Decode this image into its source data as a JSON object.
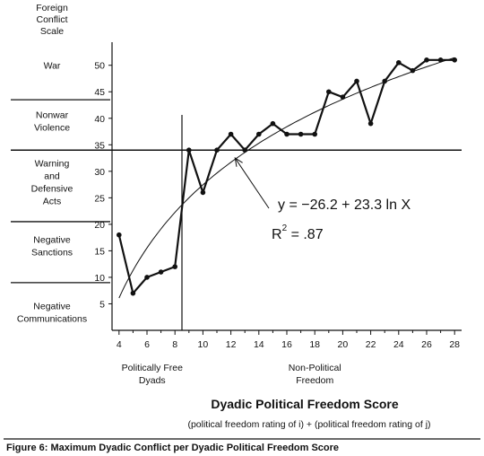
{
  "chart_data": {
    "type": "line",
    "title": "",
    "y_axis_title": [
      "Foreign",
      "Conflict",
      "Scale"
    ],
    "xlabel": "Dyadic Political Freedom Score",
    "xlabel_sub": "(political freedom rating of i) + (political freedom rating of j)",
    "xlim": [
      3.5,
      28.5
    ],
    "ylim": [
      0,
      53
    ],
    "x_ticks": [
      4,
      6,
      8,
      10,
      12,
      14,
      16,
      18,
      20,
      22,
      24,
      26,
      28
    ],
    "y_ticks": [
      5,
      10,
      15,
      20,
      25,
      30,
      35,
      40,
      45,
      50
    ],
    "series": [
      {
        "name": "",
        "style": "line-with-markers",
        "points": [
          {
            "x": 4,
            "y": 18
          },
          {
            "x": 5,
            "y": 7
          },
          {
            "x": 6,
            "y": 10
          },
          {
            "x": 7,
            "y": 11
          },
          {
            "x": 8,
            "y": 12
          },
          {
            "x": 9,
            "y": 34
          },
          {
            "x": 10,
            "y": 26
          },
          {
            "x": 11,
            "y": 34
          },
          {
            "x": 12,
            "y": 37
          },
          {
            "x": 13,
            "y": 34
          },
          {
            "x": 14,
            "y": 37
          },
          {
            "x": 15,
            "y": 39
          },
          {
            "x": 16,
            "y": 37
          },
          {
            "x": 17,
            "y": 37
          },
          {
            "x": 18,
            "y": 37
          },
          {
            "x": 19,
            "y": 45
          },
          {
            "x": 20,
            "y": 44
          },
          {
            "x": 21,
            "y": 47
          },
          {
            "x": 22,
            "y": 39
          },
          {
            "x": 23,
            "y": 47
          },
          {
            "x": 24,
            "y": 50.5
          },
          {
            "x": 25,
            "y": 49
          },
          {
            "x": 26,
            "y": 51
          },
          {
            "x": 27,
            "y": 51
          },
          {
            "x": 28,
            "y": 51
          }
        ]
      },
      {
        "name": "",
        "style": "fitted-curve",
        "equation": {
          "a": -26.2,
          "b": 23.3
        },
        "x_range": [
          4,
          28
        ]
      }
    ],
    "band_boundaries": [
      9,
      20.5,
      34,
      43.5
    ],
    "bands": [
      {
        "label": [
          "War"
        ],
        "y": 50
      },
      {
        "label": [
          "Nonwar",
          "Violence"
        ],
        "y": 39.5
      },
      {
        "label": [
          "Warning",
          "and",
          "Defensive",
          "Acts"
        ],
        "y": 28
      },
      {
        "label": [
          "Negative",
          "Sanctions"
        ],
        "y": 16
      },
      {
        "label": [
          "Negative",
          "Communications"
        ],
        "y": 3.5
      }
    ],
    "divider_x": 8.5,
    "group_labels": [
      {
        "lines": [
          "Politically Free",
          "Dyads"
        ],
        "x": 6.5
      },
      {
        "lines": [
          "Non-Political",
          "Freedom"
        ],
        "x": 18
      }
    ],
    "equation_text": {
      "y_part": "y = ",
      "rhs": "−26.2 + 23.3 ln X"
    },
    "r2_text": {
      "r": "R",
      "sup": "2",
      "rest": " = .87"
    },
    "arrow_target": {
      "x": 12.3,
      "y": 32.5
    }
  },
  "caption": "Figure 6:  Maximum Dyadic Conflict per Dyadic Political Freedom Score"
}
